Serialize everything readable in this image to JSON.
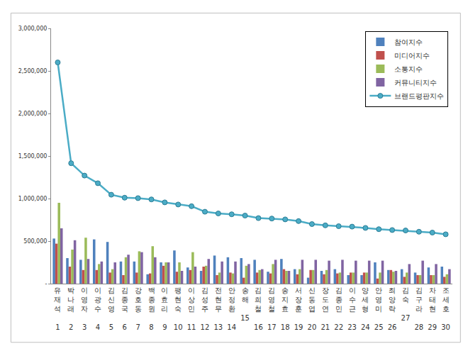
{
  "chart_data": {
    "type": "bar",
    "categories": [
      "유재석",
      "박나래",
      "이영자",
      "이광수",
      "김신영",
      "김종국",
      "강호동",
      "백종원",
      "이효리",
      "팽현숙",
      "이상민",
      "김성주",
      "전현무",
      "안정환",
      "송해",
      "김희철",
      "김영철",
      "송지효",
      "서장훈",
      "신동엽",
      "장도연",
      "김종민",
      "이수근",
      "양세형",
      "안영미",
      "최양락",
      "김숙",
      "김구라",
      "차태현",
      "조세호"
    ],
    "ranks": [
      1,
      2,
      3,
      4,
      5,
      6,
      7,
      8,
      9,
      10,
      11,
      12,
      13,
      14,
      15,
      16,
      17,
      18,
      19,
      20,
      21,
      22,
      23,
      24,
      25,
      26,
      27,
      28,
      29,
      30
    ],
    "series": [
      {
        "name": "참여지수",
        "type": "bar",
        "color": "#4f81bd",
        "values": [
          530000,
          300000,
          280000,
          520000,
          490000,
          260000,
          260000,
          110000,
          250000,
          390000,
          190000,
          150000,
          330000,
          310000,
          300000,
          280000,
          140000,
          290000,
          170000,
          70000,
          150000,
          170000,
          100000,
          100000,
          250000,
          160000,
          170000,
          130000,
          190000,
          200000
        ]
      },
      {
        "name": "미디어지수",
        "type": "bar",
        "color": "#c0504d",
        "values": [
          470000,
          200000,
          160000,
          160000,
          130000,
          100000,
          130000,
          120000,
          210000,
          140000,
          160000,
          200000,
          100000,
          130000,
          70000,
          130000,
          120000,
          170000,
          110000,
          160000,
          110000,
          120000,
          130000,
          130000,
          60000,
          160000,
          80000,
          100000,
          100000,
          80000
        ]
      },
      {
        "name": "소통지수",
        "type": "bar",
        "color": "#9bbb59",
        "values": [
          950000,
          400000,
          540000,
          230000,
          170000,
          310000,
          380000,
          440000,
          250000,
          250000,
          370000,
          210000,
          130000,
          120000,
          210000,
          160000,
          230000,
          150000,
          170000,
          160000,
          160000,
          130000,
          130000,
          130000,
          130000,
          140000,
          130000,
          100000,
          100000,
          110000
        ]
      },
      {
        "name": "커뮤니티지수",
        "type": "bar",
        "color": "#8064a2",
        "values": [
          650000,
          510000,
          290000,
          260000,
          250000,
          340000,
          370000,
          310000,
          250000,
          150000,
          200000,
          290000,
          260000,
          260000,
          230000,
          170000,
          280000,
          150000,
          280000,
          280000,
          270000,
          280000,
          270000,
          270000,
          270000,
          150000,
          230000,
          270000,
          230000,
          170000
        ]
      },
      {
        "name": "브랜드평판지수",
        "type": "line",
        "color": "#4bacc6",
        "marker": "circle",
        "values": [
          2600000,
          1415000,
          1270000,
          1180000,
          1045000,
          1010000,
          1005000,
          990000,
          955000,
          930000,
          910000,
          845000,
          825000,
          815000,
          800000,
          770000,
          765000,
          755000,
          735000,
          700000,
          685000,
          675000,
          670000,
          655000,
          640000,
          630000,
          625000,
          610000,
          600000,
          580000
        ]
      }
    ],
    "ylim": [
      0,
      3000000
    ],
    "yticks": [
      {
        "value": 0,
        "label": "-"
      },
      {
        "value": 500000,
        "label": "500,000"
      },
      {
        "value": 1000000,
        "label": "1,000,000"
      },
      {
        "value": 1500000,
        "label": "1,500,000"
      },
      {
        "value": 2000000,
        "label": "2,000,000"
      },
      {
        "value": 2500000,
        "label": "2,500,000"
      },
      {
        "value": 3000000,
        "label": "3,000,000"
      }
    ],
    "grid": false,
    "legend": "top-right"
  }
}
